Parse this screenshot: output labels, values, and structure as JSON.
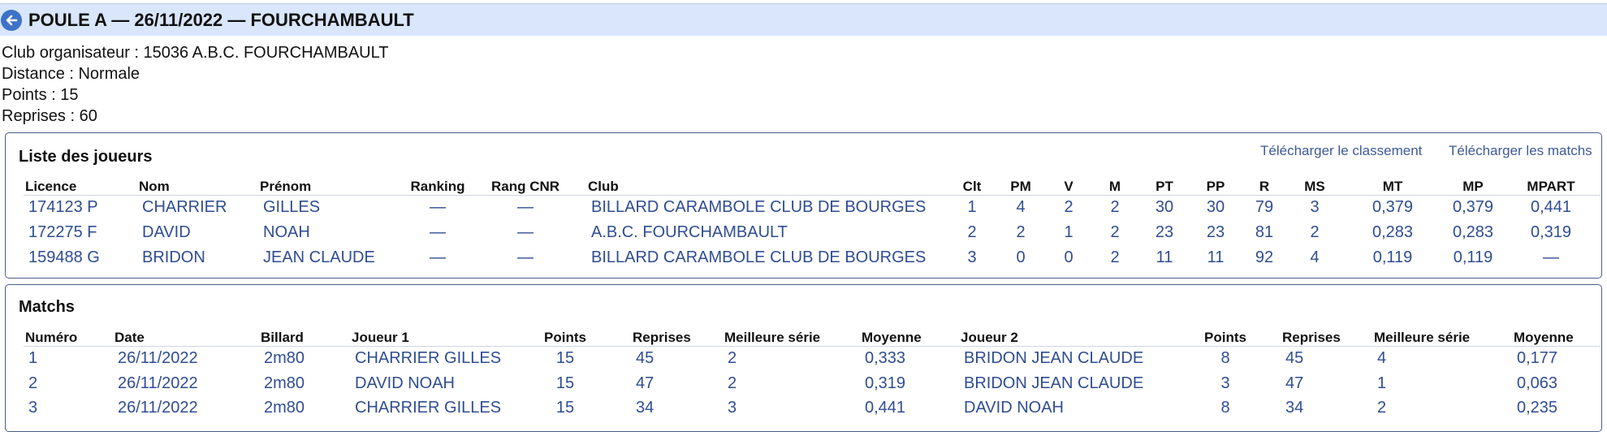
{
  "header": {
    "title": "POULE A — 26/11/2022 — FOURCHAMBAULT"
  },
  "info": {
    "club": "Club organisateur : 15036 A.B.C. FOURCHAMBAULT",
    "distance": "Distance : Normale",
    "points": "Points : 15",
    "reprises": "Reprises : 60"
  },
  "players": {
    "title": "Liste des joueurs",
    "link_classement": "Télécharger le classement",
    "link_matchs": "Télécharger les matchs",
    "columns": [
      "Licence",
      "Nom",
      "Prénom",
      "Ranking",
      "Rang CNR",
      "Club",
      "Clt",
      "PM",
      "V",
      "M",
      "PT",
      "PP",
      "R",
      "MS",
      "MT",
      "MP",
      "MPART"
    ],
    "rows": [
      [
        "174123 P",
        "CHARRIER",
        "GILLES",
        "—",
        "—",
        "BILLARD CARAMBOLE CLUB DE BOURGES",
        "1",
        "4",
        "2",
        "2",
        "30",
        "30",
        "79",
        "3",
        "0,379",
        "0,379",
        "0,441"
      ],
      [
        "172275 F",
        "DAVID",
        "NOAH",
        "—",
        "—",
        "A.B.C. FOURCHAMBAULT",
        "2",
        "2",
        "1",
        "2",
        "23",
        "23",
        "81",
        "2",
        "0,283",
        "0,283",
        "0,319"
      ],
      [
        "159488 G",
        "BRIDON",
        "JEAN CLAUDE",
        "—",
        "—",
        "BILLARD CARAMBOLE CLUB DE BOURGES",
        "3",
        "0",
        "0",
        "2",
        "11",
        "11",
        "92",
        "4",
        "0,119",
        "0,119",
        "—"
      ]
    ]
  },
  "matches": {
    "title": "Matchs",
    "columns": [
      "Numéro",
      "Date",
      "Billard",
      "Joueur 1",
      "Points",
      "Reprises",
      "Meilleure série",
      "Moyenne",
      "Joueur 2",
      "Points",
      "Reprises",
      "Meilleure série",
      "Moyenne"
    ],
    "rows": [
      [
        "1",
        "26/11/2022",
        "2m80",
        "CHARRIER GILLES",
        "15",
        "45",
        "2",
        "0,333",
        "BRIDON JEAN CLAUDE",
        "8",
        "45",
        "4",
        "0,177"
      ],
      [
        "2",
        "26/11/2022",
        "2m80",
        "DAVID NOAH",
        "15",
        "47",
        "2",
        "0,319",
        "BRIDON JEAN CLAUDE",
        "3",
        "47",
        "1",
        "0,063"
      ],
      [
        "3",
        "26/11/2022",
        "2m80",
        "CHARRIER GILLES",
        "15",
        "34",
        "3",
        "0,441",
        "DAVID NOAH",
        "8",
        "34",
        "2",
        "0,235"
      ]
    ]
  }
}
